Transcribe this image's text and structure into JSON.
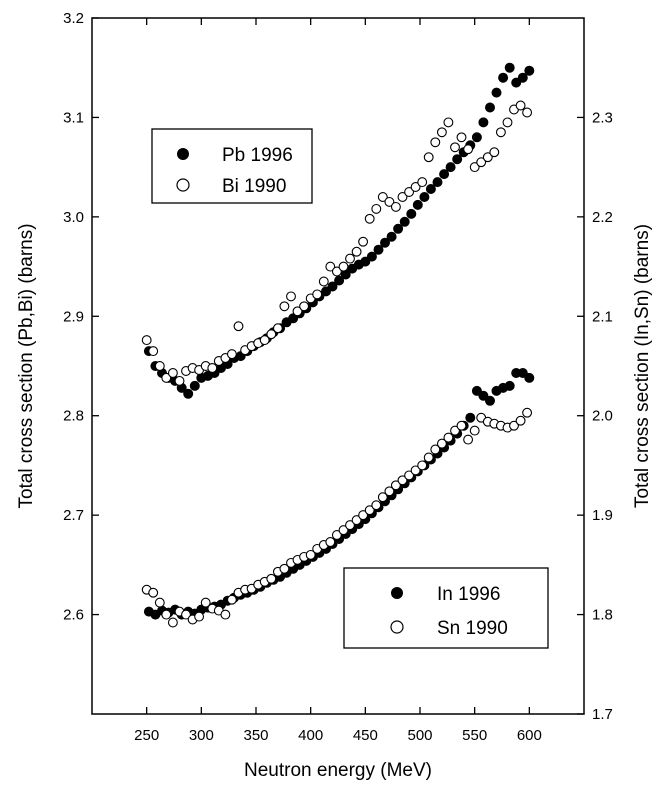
{
  "chart_data": {
    "type": "scatter",
    "title": "",
    "xlabel": "Neutron energy (MeV)",
    "ylabel_left": "Total cross section (Pb,Bi) (barns)",
    "ylabel_right": "Total cross section (In,Sn) (barns)",
    "xlim": [
      200,
      650
    ],
    "ylim_left": [
      2.5,
      3.2
    ],
    "ylim_right": [
      1.7,
      2.4
    ],
    "xticks": [
      250,
      300,
      350,
      400,
      450,
      500,
      550,
      600
    ],
    "xtick_labels": [
      "250",
      "300",
      "350",
      "400",
      "450",
      "500",
      "550",
      "600"
    ],
    "yticks_left": [
      2.6,
      2.7,
      2.8,
      2.9,
      3.0,
      3.1,
      3.2
    ],
    "ytick_labels_left": [
      "2.6",
      "2.7",
      "2.8",
      "2.9",
      "3.0",
      "3.1",
      "3.2"
    ],
    "yticks_right": [
      1.7,
      1.8,
      1.9,
      2.0,
      2.1,
      2.2,
      2.3
    ],
    "ytick_labels_right": [
      "1.7",
      "1.8",
      "1.9",
      "2.0",
      "2.1",
      "2.2",
      "2.3"
    ],
    "grid": false,
    "legends": [
      {
        "placement": "top-left",
        "entries": [
          {
            "label": "Pb 1996",
            "marker": "filled-circle"
          },
          {
            "label": "Bi 1990",
            "marker": "open-circle"
          }
        ]
      },
      {
        "placement": "bottom-right",
        "entries": [
          {
            "label": "In 1996",
            "marker": "filled-circle"
          },
          {
            "label": "Sn 1990",
            "marker": "open-circle"
          }
        ]
      }
    ],
    "series": [
      {
        "name": "Pb 1996",
        "axis": "left",
        "marker": "filled-circle",
        "x": [
          252,
          258,
          264,
          270,
          276,
          282,
          288,
          294,
          300,
          306,
          312,
          318,
          324,
          330,
          336,
          342,
          348,
          354,
          360,
          366,
          372,
          378,
          384,
          390,
          396,
          402,
          408,
          414,
          420,
          426,
          432,
          438,
          444,
          450,
          456,
          462,
          468,
          474,
          480,
          486,
          492,
          498,
          504,
          510,
          516,
          522,
          528,
          534,
          540,
          546,
          552,
          558,
          564,
          570,
          576,
          582,
          588,
          594,
          600
        ],
        "y": [
          2.865,
          2.85,
          2.843,
          2.838,
          2.835,
          2.828,
          2.822,
          2.83,
          2.838,
          2.84,
          2.843,
          2.848,
          2.852,
          2.858,
          2.86,
          2.865,
          2.87,
          2.874,
          2.878,
          2.884,
          2.888,
          2.894,
          2.898,
          2.903,
          2.908,
          2.914,
          2.92,
          2.925,
          2.93,
          2.936,
          2.942,
          2.948,
          2.952,
          2.955,
          2.96,
          2.967,
          2.974,
          2.98,
          2.988,
          2.995,
          3.003,
          3.012,
          3.02,
          3.028,
          3.035,
          3.043,
          3.05,
          3.058,
          3.065,
          3.072,
          3.08,
          3.095,
          3.11,
          3.125,
          3.14,
          3.15,
          3.135,
          3.14,
          3.147
        ]
      },
      {
        "name": "Bi 1990",
        "axis": "left",
        "marker": "open-circle",
        "x": [
          250,
          256,
          262,
          268,
          274,
          280,
          286,
          292,
          298,
          304,
          310,
          316,
          322,
          328,
          334,
          340,
          346,
          352,
          358,
          364,
          370,
          376,
          382,
          388,
          394,
          400,
          406,
          412,
          418,
          424,
          430,
          436,
          442,
          448,
          454,
          460,
          466,
          472,
          478,
          484,
          490,
          496,
          502,
          508,
          514,
          520,
          526,
          532,
          538,
          544,
          550,
          556,
          562,
          568,
          574,
          580,
          586,
          592,
          598
        ],
        "y": [
          2.876,
          2.865,
          2.85,
          2.838,
          2.843,
          2.835,
          2.845,
          2.848,
          2.846,
          2.85,
          2.848,
          2.855,
          2.858,
          2.862,
          2.89,
          2.866,
          2.87,
          2.873,
          2.876,
          2.882,
          2.888,
          2.91,
          2.92,
          2.905,
          2.91,
          2.918,
          2.922,
          2.935,
          2.95,
          2.945,
          2.95,
          2.958,
          2.965,
          2.975,
          2.998,
          3.008,
          3.02,
          3.015,
          3.01,
          3.02,
          3.025,
          3.03,
          3.035,
          3.06,
          3.075,
          3.085,
          3.095,
          3.07,
          3.08,
          3.068,
          3.05,
          3.055,
          3.06,
          3.065,
          3.085,
          3.095,
          3.108,
          3.112,
          3.105
        ]
      },
      {
        "name": "In 1996",
        "axis": "right",
        "marker": "filled-circle",
        "x": [
          252,
          258,
          264,
          270,
          276,
          282,
          288,
          294,
          300,
          306,
          312,
          318,
          324,
          330,
          336,
          342,
          348,
          354,
          360,
          366,
          372,
          378,
          384,
          390,
          396,
          402,
          408,
          414,
          420,
          426,
          432,
          438,
          444,
          450,
          456,
          462,
          468,
          474,
          480,
          486,
          492,
          498,
          504,
          510,
          516,
          522,
          528,
          534,
          540,
          546,
          552,
          558,
          564,
          570,
          576,
          582,
          588,
          594,
          600
        ],
        "y": [
          1.803,
          1.8,
          1.804,
          1.802,
          1.805,
          1.8,
          1.803,
          1.801,
          1.805,
          1.807,
          1.808,
          1.81,
          1.814,
          1.817,
          1.82,
          1.822,
          1.825,
          1.828,
          1.832,
          1.835,
          1.838,
          1.842,
          1.846,
          1.85,
          1.854,
          1.858,
          1.862,
          1.866,
          1.871,
          1.876,
          1.881,
          1.886,
          1.891,
          1.896,
          1.902,
          1.908,
          1.914,
          1.92,
          1.926,
          1.932,
          1.938,
          1.944,
          1.95,
          1.956,
          1.962,
          1.968,
          1.975,
          1.982,
          1.99,
          1.998,
          2.025,
          2.02,
          2.015,
          2.025,
          2.028,
          2.03,
          2.043,
          2.043,
          2.038
        ]
      },
      {
        "name": "Sn 1990",
        "axis": "right",
        "marker": "open-circle",
        "x": [
          250,
          256,
          262,
          268,
          274,
          280,
          286,
          292,
          298,
          304,
          310,
          316,
          322,
          328,
          334,
          340,
          346,
          352,
          358,
          364,
          370,
          376,
          382,
          388,
          394,
          400,
          406,
          412,
          418,
          424,
          430,
          436,
          442,
          448,
          454,
          460,
          466,
          472,
          478,
          484,
          490,
          496,
          502,
          508,
          514,
          520,
          526,
          532,
          538,
          544,
          550,
          556,
          562,
          568,
          574,
          580,
          586,
          592,
          598
        ],
        "y": [
          1.825,
          1.822,
          1.812,
          1.8,
          1.792,
          1.803,
          1.8,
          1.795,
          1.798,
          1.812,
          1.806,
          1.804,
          1.8,
          1.815,
          1.822,
          1.825,
          1.826,
          1.83,
          1.833,
          1.836,
          1.843,
          1.846,
          1.852,
          1.855,
          1.858,
          1.86,
          1.866,
          1.87,
          1.873,
          1.88,
          1.885,
          1.89,
          1.895,
          1.9,
          1.905,
          1.91,
          1.918,
          1.924,
          1.93,
          1.935,
          1.94,
          1.945,
          1.95,
          1.958,
          1.966,
          1.972,
          1.978,
          1.985,
          1.99,
          1.976,
          1.985,
          1.998,
          1.994,
          1.992,
          1.99,
          1.988,
          1.99,
          1.995,
          2.003
        ]
      }
    ]
  }
}
